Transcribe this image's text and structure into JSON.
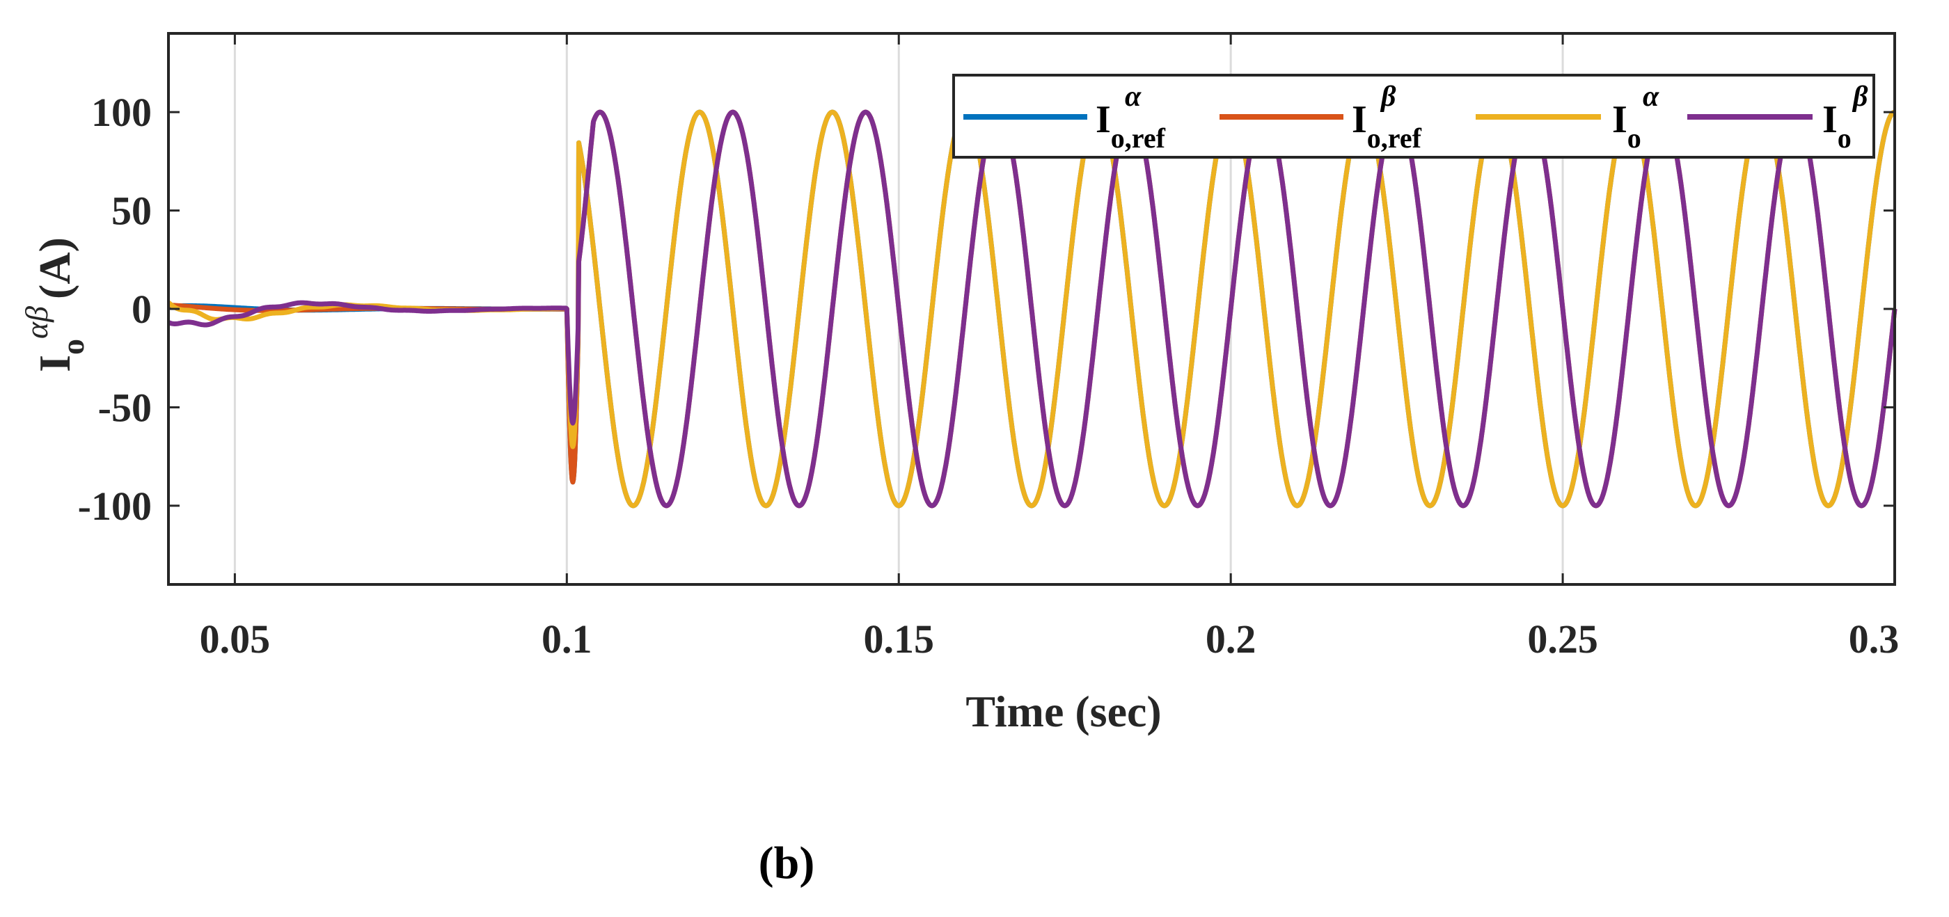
{
  "chart_data": {
    "type": "line",
    "title": "",
    "xlabel": "Time (sec)",
    "ylabel": {
      "main": "I",
      "sub": "o",
      "sup": "αβ",
      "unit": "(A)"
    },
    "xlim": [
      0.04,
      0.3
    ],
    "ylim": [
      -140,
      140
    ],
    "xticks": [
      0.05,
      0.1,
      0.15,
      0.2,
      0.25,
      0.3
    ],
    "xtick_labels": [
      "0.05",
      "0.1",
      "0.15",
      "0.2",
      "0.25",
      "0.3"
    ],
    "yticks": [
      100,
      50,
      0,
      -50,
      -100
    ],
    "ytick_labels": [
      "100",
      "50",
      "0",
      "-50",
      "-100"
    ],
    "grid": "vertical",
    "legend_position": "top-right",
    "signal": {
      "frequency_hz": 50,
      "amplitude": 100,
      "step_time": 0.1,
      "pre_step_value": 0,
      "phase_shift_deg": 90
    },
    "series": [
      {
        "name": "I o,ref α",
        "main": "I",
        "sub": "o,ref",
        "sup": "α",
        "color": "#0072BD",
        "phase_deg": 90,
        "pre_amp": 2,
        "post_min": -88
      },
      {
        "name": "I o,ref β",
        "main": "I",
        "sub": "o,ref",
        "sup": "β",
        "color": "#D95319",
        "phase_deg": 0,
        "pre_amp": 2,
        "post_min": -88
      },
      {
        "name": "I o α",
        "main": "I",
        "sub": "o",
        "sup": "α",
        "color": "#EDB120",
        "phase_deg": 90,
        "pre_amp": 9,
        "post_min": -70
      },
      {
        "name": "I o β",
        "main": "I",
        "sub": "o",
        "sup": "β",
        "color": "#7E2F8E",
        "phase_deg": 0,
        "pre_amp": 10,
        "post_min": -58
      }
    ]
  },
  "figure": {
    "panel_label": "(b)"
  }
}
